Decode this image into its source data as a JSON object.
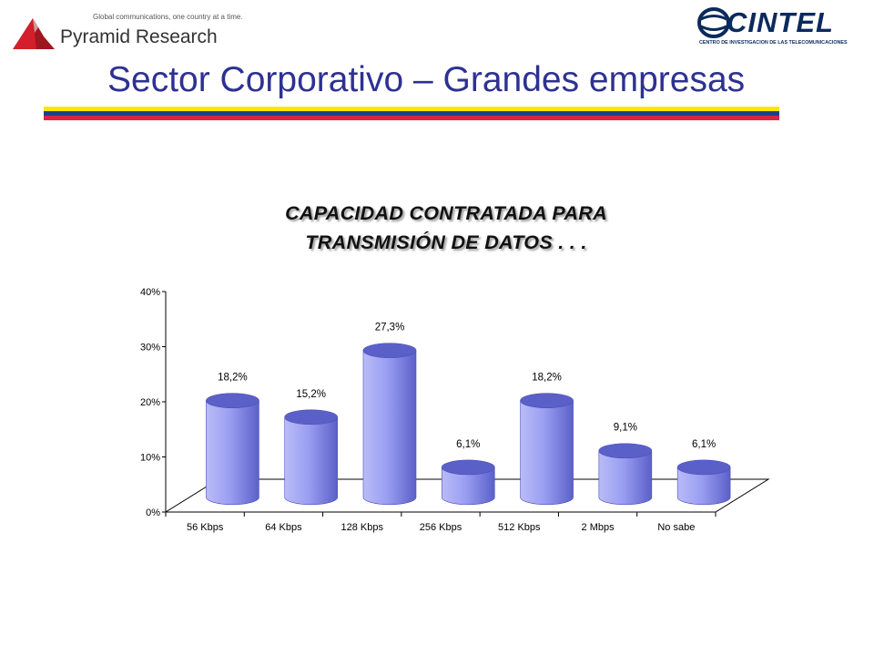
{
  "header": {
    "pyramid_tagline": "Global communications, one country at a time.",
    "pyramid_name": "Pyramid Research",
    "cintel_name": "CINTEL",
    "cintel_subtitle": "CENTRO DE INVESTIGACION DE LAS TELECOMUNICACIONES"
  },
  "slide": {
    "title": "Sector Corporativo – Grandes empresas"
  },
  "colors": {
    "title": "#2e3192",
    "stripe_yellow": "#ffe600",
    "stripe_blue": "#1c3f94",
    "stripe_red": "#d7263d",
    "bar_fill": "#8f94ee",
    "bar_dark": "#5b60c9",
    "bar_light": "#b9bcf7"
  },
  "chart_data": {
    "type": "bar",
    "title_lines": [
      "CAPACIDAD CONTRATADA PARA",
      "TRANSMISIÓN DE DATOS . . ."
    ],
    "categories": [
      "56 Kbps",
      "64 Kbps",
      "128 Kbps",
      "256 Kbps",
      "512 Kbps",
      "2 Mbps",
      "No sabe"
    ],
    "values": [
      18.2,
      15.2,
      27.3,
      6.1,
      18.2,
      9.1,
      6.1
    ],
    "data_labels": [
      "18,2%",
      "15,2%",
      "27,3%",
      "6,1%",
      "18,2%",
      "9,1%",
      "6,1%"
    ],
    "y_ticks": [
      "0%",
      "10%",
      "20%",
      "30%",
      "40%"
    ],
    "ylim": [
      0,
      40
    ],
    "grid": false,
    "style": "3d-cylinder"
  }
}
